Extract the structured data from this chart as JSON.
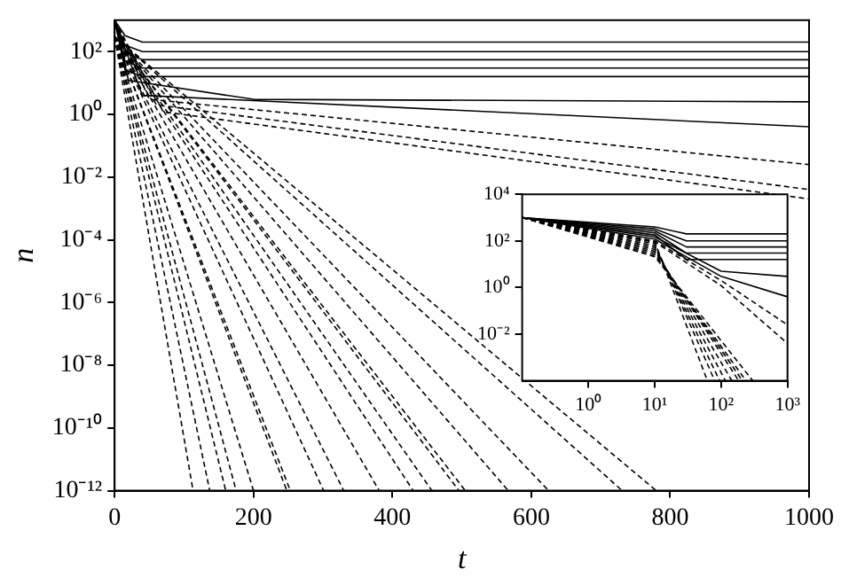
{
  "chart_data": [
    {
      "type": "line",
      "xlabel": "t",
      "ylabel": "n",
      "log": "y",
      "xlim": [
        0,
        1000
      ],
      "ylim": [
        1e-12,
        1000
      ],
      "xticks": [
        0,
        200,
        400,
        600,
        800,
        1000
      ],
      "yticks": [
        {
          "value": 1e-12,
          "label": "10⁻¹²"
        },
        {
          "value": 1e-10,
          "label": "10⁻¹⁰"
        },
        {
          "value": 1e-08,
          "label": "10⁻⁸"
        },
        {
          "value": 1e-06,
          "label": "10⁻⁶"
        },
        {
          "value": 0.0001,
          "label": "10⁻⁴"
        },
        {
          "value": 0.01,
          "label": "10⁻²"
        },
        {
          "value": 1,
          "label": "10⁰"
        },
        {
          "value": 100,
          "label": "10²"
        }
      ],
      "marker": "none",
      "series": [
        {
          "color": "#000000",
          "line_style": "solid",
          "x": [
            0,
            15,
            40,
            1000
          ],
          "values": [
            1000,
            320,
            200,
            200
          ]
        },
        {
          "color": "#000000",
          "line_style": "solid",
          "x": [
            0,
            15,
            40,
            1000
          ],
          "values": [
            1000,
            160,
            100,
            100
          ]
        },
        {
          "color": "#000000",
          "line_style": "solid",
          "x": [
            0,
            15,
            40,
            1000
          ],
          "values": [
            1000,
            90,
            55,
            55
          ]
        },
        {
          "color": "#000000",
          "line_style": "solid",
          "x": [
            0,
            15,
            40,
            1000
          ],
          "values": [
            1000,
            50,
            30,
            30
          ]
        },
        {
          "color": "#000000",
          "line_style": "solid",
          "x": [
            0,
            15,
            40,
            1000
          ],
          "values": [
            1000,
            26,
            16,
            16
          ]
        },
        {
          "color": "#000000",
          "line_style": "solid",
          "x": [
            0,
            20,
            200,
            1000
          ],
          "values": [
            1000,
            12,
            3,
            2.5
          ]
        },
        {
          "color": "#000000",
          "line_style": "solid",
          "x": [
            0,
            40,
            1000
          ],
          "values": [
            1000,
            4,
            0.4
          ]
        },
        {
          "color": "#000000",
          "line_style": "dashed",
          "x": [
            0,
            50,
            1000
          ],
          "values": [
            1000,
            3,
            0.025
          ]
        },
        {
          "color": "#000000",
          "line_style": "dashed",
          "x": [
            0,
            60,
            1000
          ],
          "values": [
            1000,
            2,
            0.004
          ]
        },
        {
          "color": "#000000",
          "line_style": "dashed",
          "x": [
            0,
            70,
            1000
          ],
          "values": [
            1000,
            1.2,
            0.002
          ]
        },
        {
          "color": "#000000",
          "line_style": "dashed",
          "x": [
            0,
            113
          ],
          "values": [
            300,
            1e-12
          ]
        },
        {
          "color": "#000000",
          "line_style": "dashed",
          "x": [
            0,
            137
          ],
          "values": [
            300,
            1e-12
          ]
        },
        {
          "color": "#000000",
          "line_style": "dashed",
          "x": [
            0,
            160
          ],
          "values": [
            300,
            1e-12
          ]
        },
        {
          "color": "#000000",
          "line_style": "dashed",
          "x": [
            0,
            175
          ],
          "values": [
            300,
            1e-12
          ]
        },
        {
          "color": "#000000",
          "line_style": "dashed",
          "x": [
            0,
            200
          ],
          "values": [
            300,
            1e-12
          ]
        },
        {
          "color": "#000000",
          "line_style": "dashed",
          "x": [
            0,
            248
          ],
          "values": [
            300,
            1e-12
          ]
        },
        {
          "color": "#000000",
          "line_style": "dashed",
          "x": [
            0,
            253
          ],
          "values": [
            300,
            1e-12
          ]
        },
        {
          "color": "#000000",
          "line_style": "dashed",
          "x": [
            0,
            301
          ],
          "values": [
            300,
            1e-12
          ]
        },
        {
          "color": "#000000",
          "line_style": "dashed",
          "x": [
            0,
            330
          ],
          "values": [
            300,
            1e-12
          ]
        },
        {
          "color": "#000000",
          "line_style": "dashed",
          "x": [
            0,
            381
          ],
          "values": [
            300,
            1e-12
          ]
        },
        {
          "color": "#000000",
          "line_style": "dashed",
          "x": [
            0,
            430
          ],
          "values": [
            300,
            1e-12
          ]
        },
        {
          "color": "#000000",
          "line_style": "dashed",
          "x": [
            0,
            457
          ],
          "values": [
            300,
            1e-12
          ]
        },
        {
          "color": "#000000",
          "line_style": "dashed",
          "x": [
            0,
            496
          ],
          "values": [
            300,
            1e-12
          ]
        },
        {
          "color": "#000000",
          "line_style": "dashed",
          "x": [
            0,
            505
          ],
          "values": [
            300,
            1e-12
          ]
        },
        {
          "color": "#000000",
          "line_style": "dashed",
          "x": [
            0,
            567
          ],
          "values": [
            300,
            1e-12
          ]
        },
        {
          "color": "#000000",
          "line_style": "dashed",
          "x": [
            0,
            625
          ],
          "values": [
            300,
            1e-12
          ]
        },
        {
          "color": "#000000",
          "line_style": "dashed",
          "x": [
            0,
            731
          ],
          "values": [
            300,
            1e-12
          ]
        },
        {
          "color": "#000000",
          "line_style": "dashed",
          "x": [
            0,
            780
          ],
          "values": [
            300,
            1e-12
          ]
        }
      ]
    },
    {
      "type": "line",
      "log": "xy",
      "xlim": [
        0.1,
        1000
      ],
      "ylim": [
        0.0001,
        10000
      ],
      "xticks": [
        {
          "value": 1,
          "label": "10⁰"
        },
        {
          "value": 10,
          "label": "10¹"
        },
        {
          "value": 100,
          "label": "10²"
        },
        {
          "value": 1000,
          "label": "10³"
        }
      ],
      "yticks": [
        {
          "value": 0.01,
          "label": "10⁻²"
        },
        {
          "value": 1,
          "label": "10⁰"
        },
        {
          "value": 100,
          "label": "10²"
        },
        {
          "value": 10000,
          "label": "10⁴"
        }
      ],
      "marker": "none",
      "series": [
        {
          "color": "#000000",
          "line_style": "solid",
          "x": [
            0.1,
            10,
            30,
            1000
          ],
          "values": [
            1000,
            400,
            200,
            200
          ]
        },
        {
          "color": "#000000",
          "line_style": "solid",
          "x": [
            0.1,
            10,
            30,
            1000
          ],
          "values": [
            1000,
            330,
            100,
            100
          ]
        },
        {
          "color": "#000000",
          "line_style": "solid",
          "x": [
            0.1,
            10,
            30,
            1000
          ],
          "values": [
            1000,
            270,
            55,
            55
          ]
        },
        {
          "color": "#000000",
          "line_style": "solid",
          "x": [
            0.1,
            10,
            30,
            1000
          ],
          "values": [
            1000,
            220,
            30,
            30
          ]
        },
        {
          "color": "#000000",
          "line_style": "solid",
          "x": [
            0.1,
            10,
            30,
            1000
          ],
          "values": [
            1000,
            180,
            16,
            16
          ]
        },
        {
          "color": "#000000",
          "line_style": "solid",
          "x": [
            0.1,
            10,
            100,
            1000
          ],
          "values": [
            1000,
            150,
            5,
            3
          ]
        },
        {
          "color": "#000000",
          "line_style": "solid",
          "x": [
            0.1,
            10,
            100,
            1000
          ],
          "values": [
            1000,
            120,
            3,
            0.4
          ]
        },
        {
          "color": "#000000",
          "line_style": "dashed",
          "x": [
            0.1,
            10,
            100,
            1000
          ],
          "values": [
            1000,
            100,
            2,
            0.025
          ]
        },
        {
          "color": "#000000",
          "line_style": "dashed",
          "x": [
            0.1,
            10,
            100,
            1000
          ],
          "values": [
            1000,
            90,
            1.2,
            0.004
          ]
        },
        {
          "color": "#000000",
          "line_style": "dashed",
          "x": [
            0.1,
            10,
            62
          ],
          "values": [
            1000,
            90,
            0.0001
          ]
        },
        {
          "color": "#000000",
          "line_style": "dashed",
          "x": [
            0.1,
            10,
            80
          ],
          "values": [
            1000,
            75,
            0.0001
          ]
        },
        {
          "color": "#000000",
          "line_style": "dashed",
          "x": [
            0.1,
            10,
            95
          ],
          "values": [
            1000,
            62,
            0.0001
          ]
        },
        {
          "color": "#000000",
          "line_style": "dashed",
          "x": [
            0.1,
            10,
            116
          ],
          "values": [
            1000,
            52,
            0.0001
          ]
        },
        {
          "color": "#000000",
          "line_style": "dashed",
          "x": [
            0.1,
            10,
            145
          ],
          "values": [
            1000,
            43,
            0.0001
          ]
        },
        {
          "color": "#000000",
          "line_style": "dashed",
          "x": [
            0.1,
            10,
            184
          ],
          "values": [
            1000,
            36,
            0.0001
          ]
        },
        {
          "color": "#000000",
          "line_style": "dashed",
          "x": [
            0.1,
            10,
            209
          ],
          "values": [
            1000,
            30,
            0.0001
          ]
        },
        {
          "color": "#000000",
          "line_style": "dashed",
          "x": [
            0.1,
            10,
            237
          ],
          "values": [
            1000,
            25,
            0.0001
          ]
        },
        {
          "color": "#000000",
          "line_style": "dashed",
          "x": [
            0.1,
            10,
            300
          ],
          "values": [
            1000,
            21,
            0.0001
          ]
        }
      ]
    }
  ]
}
